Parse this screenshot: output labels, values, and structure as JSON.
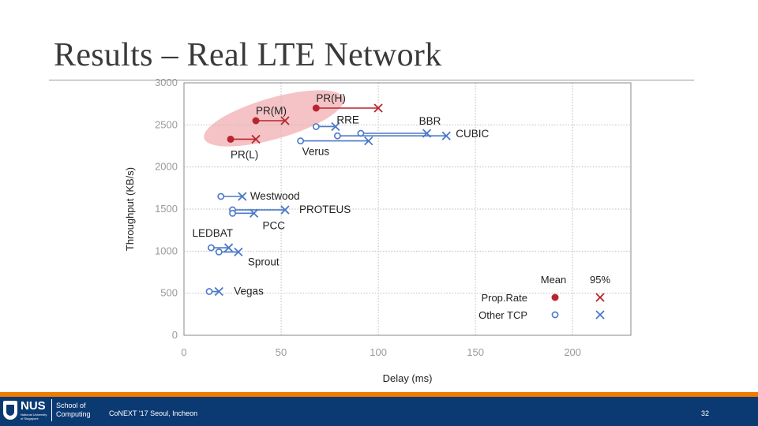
{
  "slide": {
    "title": "Results – Real LTE Network",
    "footer_text": "CoNEXT '17 Seoul, Incheon",
    "page_number": "32",
    "logo": {
      "name": "NUS",
      "subtitle": "National University of Singapore",
      "school": "School of Computing"
    }
  },
  "colors": {
    "proprate": "#b8252f",
    "other": "#4a78c8",
    "highlight": "#f3b9bb",
    "footer_bar": "#0b3a73",
    "footer_accent": "#ef7c00"
  },
  "chart_data": {
    "type": "scatter",
    "title": "",
    "xlabel": "Delay (ms)",
    "ylabel": "Throughput (KB/s)",
    "xlim": [
      0,
      230
    ],
    "ylim": [
      0,
      3000
    ],
    "x_ticks": [
      "0",
      "50",
      "100",
      "150",
      "200"
    ],
    "y_ticks": [
      "0",
      "500",
      "1000",
      "1500",
      "2000",
      "2500",
      "3000"
    ],
    "grid": true,
    "legend": {
      "position": "bottom-right",
      "columns": [
        "Mean",
        "95%"
      ],
      "entries": [
        {
          "label": "Prop.Rate",
          "group": "proprate"
        },
        {
          "label": "Other TCP",
          "group": "other"
        }
      ]
    },
    "series": [
      {
        "name": "PR(H)",
        "group": "proprate",
        "mean": [
          68,
          2700
        ],
        "p95": [
          100,
          2700
        ]
      },
      {
        "name": "PR(M)",
        "group": "proprate",
        "mean": [
          37,
          2550
        ],
        "p95": [
          52,
          2550
        ]
      },
      {
        "name": "PR(L)",
        "group": "proprate",
        "mean": [
          24,
          2330
        ],
        "p95": [
          37,
          2330
        ]
      },
      {
        "name": "RRE",
        "group": "other",
        "mean": [
          68,
          2480
        ],
        "p95": [
          78,
          2480
        ]
      },
      {
        "name": "BBR",
        "group": "other",
        "mean": [
          91,
          2400
        ],
        "p95": [
          125,
          2400
        ]
      },
      {
        "name": "CUBIC",
        "group": "other",
        "mean": [
          79,
          2370
        ],
        "p95": [
          135,
          2370
        ]
      },
      {
        "name": "Verus",
        "group": "other",
        "mean": [
          60,
          2310
        ],
        "p95": [
          95,
          2310
        ]
      },
      {
        "name": "Westwood",
        "group": "other",
        "mean": [
          19,
          1650
        ],
        "p95": [
          30,
          1650
        ]
      },
      {
        "name": "PROTEUS",
        "group": "other",
        "mean": [
          25,
          1490
        ],
        "p95": [
          52,
          1490
        ]
      },
      {
        "name": "PCC",
        "group": "other",
        "mean": [
          25,
          1450
        ],
        "p95": [
          36,
          1450
        ]
      },
      {
        "name": "LEDBAT",
        "group": "other",
        "mean": [
          14,
          1040
        ],
        "p95": [
          23,
          1040
        ]
      },
      {
        "name": "Sprout",
        "group": "other",
        "mean": [
          18,
          990
        ],
        "p95": [
          28,
          990
        ]
      },
      {
        "name": "Vegas",
        "group": "other",
        "mean": [
          13,
          520
        ],
        "p95": [
          18,
          520
        ]
      }
    ]
  }
}
